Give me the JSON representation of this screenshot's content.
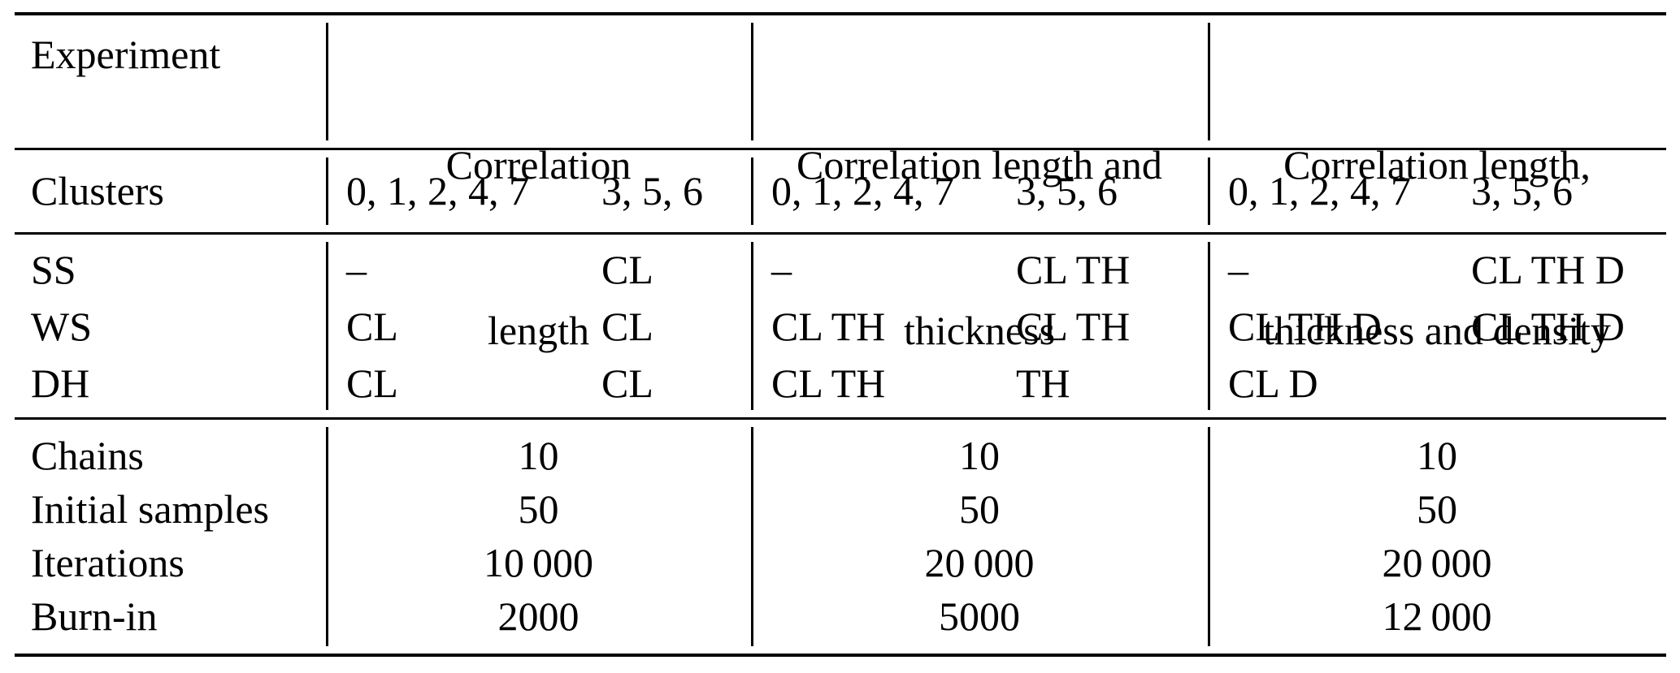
{
  "table": {
    "colors": {
      "text": "#000000",
      "background": "#ffffff",
      "rule": "#000000"
    },
    "header": {
      "label": "Experiment",
      "groups": [
        {
          "title_lines": [
            "Correlation",
            "length"
          ]
        },
        {
          "title_lines": [
            "Correlation length and",
            "thickness"
          ]
        },
        {
          "title_lines": [
            "Correlation length,",
            "thickness and density"
          ]
        }
      ]
    },
    "clusters_row": {
      "label": "Clusters",
      "values": [
        "0, 1, 2, 4, 7",
        "3, 5, 6",
        "0, 1, 2, 4, 7",
        "3, 5, 6",
        "0, 1, 2, 4, 7",
        "3, 5, 6"
      ]
    },
    "method_rows": [
      {
        "label": "SS",
        "values": [
          "–",
          "CL",
          "–",
          "CL TH",
          "–",
          "CL TH D"
        ]
      },
      {
        "label": "WS",
        "values": [
          "CL",
          "CL",
          "CL TH",
          "CL TH",
          "CL TH D",
          "CL TH D"
        ]
      },
      {
        "label": "DH",
        "values": [
          "CL",
          "CL",
          "CL TH",
          "TH",
          "CL D",
          ""
        ]
      }
    ],
    "param_rows": [
      {
        "label": "Chains",
        "values": [
          "10",
          "10",
          "10"
        ]
      },
      {
        "label": "Initial samples",
        "values": [
          "50",
          "50",
          "50"
        ]
      },
      {
        "label": "Iterations",
        "values": [
          "10 000",
          "20 000",
          "20 000"
        ]
      },
      {
        "label": "Burn-in",
        "values": [
          "2000",
          "5000",
          "12 000"
        ]
      }
    ]
  }
}
